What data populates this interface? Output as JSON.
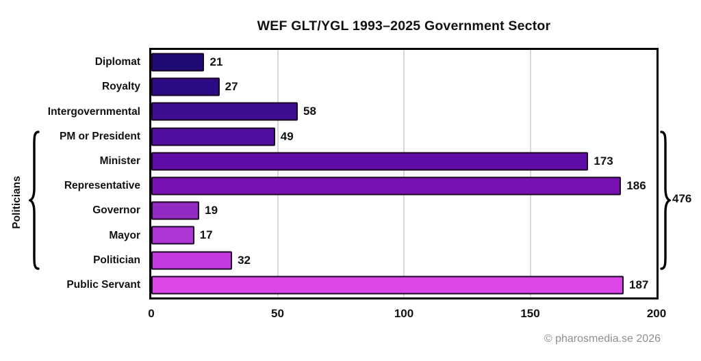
{
  "title": "WEF GLT/YGL 1993–2025 Government Sector",
  "chart_data": {
    "type": "bar",
    "orientation": "horizontal",
    "title": "WEF GLT/YGL 1993–2025 Government Sector",
    "categories": [
      "Diplomat",
      "Royalty",
      "Intergovernmental",
      "PM or President",
      "Minister",
      "Representative",
      "Governor",
      "Mayor",
      "Politician",
      "Public Servant"
    ],
    "values": [
      21,
      27,
      58,
      49,
      173,
      186,
      19,
      17,
      32,
      187
    ],
    "bar_colors": [
      "#200a74",
      "#2d0b84",
      "#3d0d92",
      "#4f0e9e",
      "#5e0ca6",
      "#7811b2",
      "#9328c2",
      "#ae36d4",
      "#c43ade",
      "#dd46e6"
    ],
    "bar_outline_color": "#1a0526",
    "xlabel": "",
    "ylabel": "",
    "xlim": [
      0,
      200
    ],
    "x_ticks": [
      "0",
      "50",
      "100",
      "150",
      "200"
    ],
    "gridlines_at": [
      50,
      100,
      150
    ],
    "gridline_color": "#d8d8d8",
    "legend_position": "none",
    "annotations": {
      "group_label": "Politicians",
      "group_total": "476",
      "group_span_categories": [
        "PM or President",
        "Minister",
        "Representative",
        "Governor",
        "Mayor",
        "Politician"
      ]
    }
  },
  "footer": {
    "copyright": "© pharosmedia.se 2026"
  }
}
